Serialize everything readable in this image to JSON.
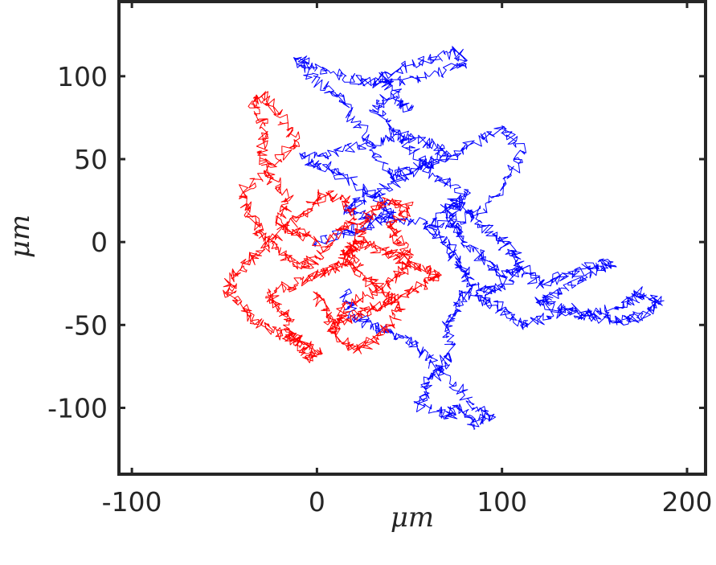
{
  "chart_data": {
    "type": "line",
    "title": "",
    "xlabel": "μm",
    "ylabel": "μm",
    "xlim": [
      -107,
      210
    ],
    "ylim": [
      -140,
      145
    ],
    "xticks": [
      -100,
      0,
      100,
      200
    ],
    "yticks": [
      100,
      50,
      0,
      -50,
      -100
    ],
    "xtick_labels": [
      "-100",
      "0",
      "100",
      "200"
    ],
    "ytick_labels": [
      "100",
      "50",
      "0",
      "-50",
      "-100"
    ],
    "grid": false,
    "legend": "none",
    "series": [
      {
        "color": "#0000ff",
        "x": [
          0,
          12,
          25,
          40,
          35,
          20,
          5,
          -8,
          10,
          30,
          45,
          60,
          70,
          55,
          40,
          25,
          15,
          30,
          50,
          70,
          90,
          105,
          110,
          100,
          85,
          70,
          55,
          40,
          30,
          20,
          10,
          -5,
          -10,
          0,
          15,
          30,
          45,
          60,
          75,
          80,
          60,
          40,
          35,
          50,
          40,
          30,
          45,
          55,
          65,
          80,
          75,
          60,
          70,
          75,
          80,
          90,
          100,
          110,
          105,
          95,
          85,
          75,
          70,
          75,
          80,
          90,
          100,
          110,
          120,
          135,
          150,
          160,
          145,
          130,
          120,
          130,
          145,
          160,
          170,
          175,
          185,
          175,
          165,
          150,
          140,
          125,
          110,
          100,
          90,
          80,
          75,
          70,
          72,
          68,
          60,
          55,
          70,
          78,
          85,
          95,
          85,
          70,
          60,
          50,
          40,
          30,
          20,
          15
        ],
        "y": [
          0,
          5,
          10,
          15,
          25,
          35,
          45,
          50,
          55,
          60,
          65,
          60,
          55,
          45,
          35,
          25,
          20,
          15,
          12,
          10,
          20,
          40,
          55,
          70,
          60,
          50,
          45,
          40,
          55,
          75,
          90,
          100,
          110,
          105,
          100,
          95,
          105,
          110,
          115,
          108,
          100,
          95,
          100,
          80,
          90,
          80,
          65,
          50,
          40,
          30,
          20,
          10,
          0,
          -10,
          -20,
          -30,
          -25,
          -15,
          -5,
          5,
          15,
          25,
          20,
          10,
          0,
          -10,
          -20,
          -15,
          -25,
          -20,
          -15,
          -12,
          -20,
          -30,
          -35,
          -40,
          -45,
          -40,
          -35,
          -30,
          -36,
          -45,
          -48,
          -45,
          -40,
          -45,
          -50,
          -40,
          -35,
          -30,
          -40,
          -50,
          -65,
          -75,
          -85,
          -98,
          -105,
          -100,
          -110,
          -105,
          -100,
          -80,
          -70,
          -60,
          -55,
          -50,
          -45,
          -30
        ]
      },
      {
        "color": "#ff0000",
        "x": [
          0,
          -10,
          -20,
          -15,
          -25,
          -30,
          -28,
          -35,
          -30,
          -20,
          -10,
          -25,
          -40,
          -35,
          -30,
          -20,
          -10,
          0,
          10,
          20,
          15,
          5,
          -5,
          -15,
          -25,
          -35,
          -45,
          -48,
          -40,
          -30,
          -20,
          -10,
          0,
          -5,
          -10,
          -15,
          -20,
          -25,
          -10,
          0,
          10,
          20,
          15,
          25,
          35,
          45,
          55,
          65,
          60,
          50,
          40,
          30,
          20,
          10,
          15,
          30,
          45,
          50,
          45,
          40,
          50,
          40,
          30,
          25,
          20,
          15,
          25,
          35,
          45,
          40,
          30,
          20,
          10,
          5,
          0
        ],
        "y": [
          0,
          5,
          10,
          25,
          40,
          55,
          70,
          85,
          88,
          75,
          60,
          45,
          30,
          15,
          5,
          -5,
          -15,
          -10,
          5,
          15,
          25,
          30,
          20,
          10,
          0,
          -10,
          -20,
          -30,
          -40,
          -50,
          -55,
          -60,
          -65,
          -70,
          -60,
          -50,
          -40,
          -30,
          -25,
          -20,
          -15,
          -10,
          -5,
          0,
          -5,
          -10,
          -15,
          -20,
          -25,
          -30,
          -35,
          -40,
          -45,
          -50,
          -40,
          -30,
          -20,
          -10,
          0,
          10,
          20,
          25,
          20,
          10,
          0,
          -10,
          -20,
          -30,
          -40,
          -50,
          -60,
          -65,
          -55,
          -45,
          -30
        ]
      }
    ]
  }
}
